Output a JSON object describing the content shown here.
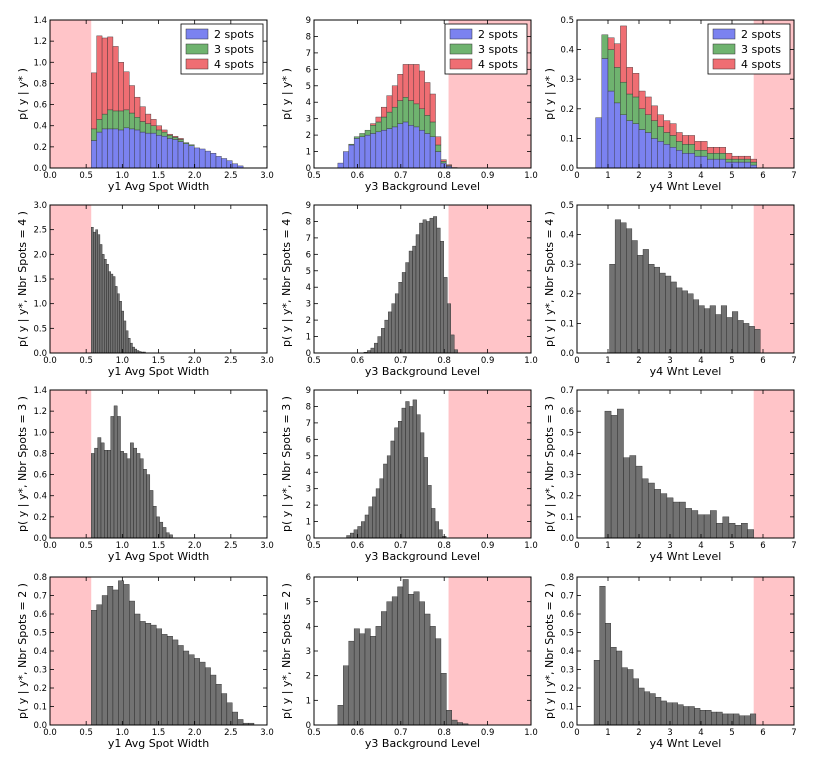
{
  "colors": {
    "two_spots": "#7b82f0",
    "three_spots": "#6fb36f",
    "four_spots": "#ef6e73",
    "gray_bars": "#6a6a6a",
    "excluded_region": "#ffc4c8"
  },
  "chart_data": [
    {
      "id": "r0c0",
      "type": "bar",
      "stacked": true,
      "xlabel": "y1 Avg Spot Width",
      "ylabel": "p( y | y* )",
      "xlim": [
        0,
        3
      ],
      "ylim": [
        0,
        1.4
      ],
      "xticks": [
        "0.0",
        "0.5",
        "1.0",
        "1.5",
        "2.0",
        "2.5",
        "3.0"
      ],
      "yticks": [
        "0.0",
        "0.2",
        "0.4",
        "0.6",
        "0.8",
        "1.0",
        "1.2",
        "1.4"
      ],
      "excluded": [
        [
          0,
          0.57
        ]
      ],
      "legend": {
        "position": "top-right",
        "entries": [
          "2 spots",
          "3 spots",
          "4 spots"
        ]
      },
      "bin_start": 0.57,
      "bin_width": 0.075,
      "series": [
        {
          "name": "2 spots",
          "values": [
            0.26,
            0.34,
            0.37,
            0.37,
            0.37,
            0.36,
            0.38,
            0.37,
            0.36,
            0.34,
            0.33,
            0.33,
            0.31,
            0.3,
            0.28,
            0.27,
            0.25,
            0.23,
            0.21,
            0.19,
            0.18,
            0.16,
            0.14,
            0.11,
            0.09,
            0.07,
            0.04,
            0.02
          ]
        },
        {
          "name": "3 spots",
          "values": [
            0.11,
            0.12,
            0.14,
            0.18,
            0.17,
            0.18,
            0.17,
            0.15,
            0.12,
            0.1,
            0.09,
            0.07,
            0.05,
            0.04,
            0.03,
            0.02,
            0.02,
            0.01,
            0.01,
            0.0,
            0.0,
            0.0,
            0.0,
            0.0,
            0.0,
            0.0,
            0.0,
            0.0
          ]
        },
        {
          "name": "4 spots",
          "values": [
            0.53,
            0.79,
            0.72,
            0.69,
            0.61,
            0.46,
            0.36,
            0.26,
            0.19,
            0.14,
            0.09,
            0.06,
            0.04,
            0.02,
            0.01,
            0.01,
            0.01,
            0.0,
            0.0,
            0.0,
            0.0,
            0.0,
            0.0,
            0.0,
            0.0,
            0.0,
            0.0,
            0.0
          ]
        }
      ]
    },
    {
      "id": "r0c1",
      "type": "bar",
      "stacked": true,
      "xlabel": "y3 Background Level",
      "ylabel": "p( y | y* )",
      "xlim": [
        0.5,
        1.0
      ],
      "ylim": [
        0,
        9
      ],
      "xticks": [
        "0.5",
        "0.6",
        "0.7",
        "0.8",
        "0.9",
        "1.0"
      ],
      "yticks": [
        "0",
        "1",
        "2",
        "3",
        "4",
        "5",
        "6",
        "7",
        "8",
        "9"
      ],
      "excluded": [
        [
          0.81,
          1.0
        ]
      ],
      "legend": {
        "position": "top-right",
        "entries": [
          "2 spots",
          "3 spots",
          "4 spots"
        ]
      },
      "bin_start": 0.555,
      "bin_width": 0.0125,
      "series": [
        {
          "name": "2 spots",
          "values": [
            0.3,
            1.0,
            1.4,
            1.8,
            1.9,
            2.0,
            2.1,
            2.2,
            2.3,
            2.4,
            2.5,
            2.7,
            2.8,
            2.6,
            2.5,
            2.3,
            2.1,
            1.9,
            1.0,
            0.3,
            0.1,
            0.03
          ]
        },
        {
          "name": "3 spots",
          "values": [
            0,
            0,
            0.05,
            0.1,
            0.2,
            0.3,
            0.5,
            0.6,
            0.8,
            1.0,
            1.2,
            1.4,
            1.5,
            1.5,
            1.4,
            1.3,
            1.1,
            0.9,
            0.4,
            0.1,
            0.05,
            0
          ]
        },
        {
          "name": "4 spots",
          "values": [
            0,
            0,
            0,
            0,
            0,
            0,
            0.1,
            0.3,
            0.6,
            1.0,
            1.3,
            1.6,
            2.0,
            2.2,
            2.4,
            2.3,
            2.0,
            1.7,
            0.5,
            0.1,
            0.05,
            0
          ]
        }
      ]
    },
    {
      "id": "r0c2",
      "type": "bar",
      "stacked": true,
      "xlabel": "y4 Wnt Level",
      "ylabel": "p( y | y* )",
      "xlim": [
        0,
        7
      ],
      "ylim": [
        0,
        0.5
      ],
      "xticks": [
        "0",
        "1",
        "2",
        "3",
        "4",
        "5",
        "6",
        "7"
      ],
      "yticks": [
        "0.0",
        "0.1",
        "0.2",
        "0.3",
        "0.4",
        "0.5"
      ],
      "excluded": [
        [
          5.7,
          7
        ]
      ],
      "legend": {
        "position": "top-right",
        "entries": [
          "2 spots",
          "3 spots",
          "4 spots"
        ]
      },
      "bin_start": 0.6,
      "bin_width": 0.2,
      "series": [
        {
          "name": "2 spots",
          "values": [
            0.17,
            0.37,
            0.26,
            0.22,
            0.18,
            0.16,
            0.15,
            0.13,
            0.12,
            0.1,
            0.09,
            0.08,
            0.07,
            0.06,
            0.05,
            0.05,
            0.04,
            0.04,
            0.03,
            0.03,
            0.03,
            0.02,
            0.02,
            0.02,
            0.02,
            0.01
          ]
        },
        {
          "name": "3 spots",
          "values": [
            0.0,
            0.08,
            0.14,
            0.12,
            0.11,
            0.09,
            0.09,
            0.07,
            0.06,
            0.06,
            0.05,
            0.04,
            0.04,
            0.03,
            0.03,
            0.03,
            0.02,
            0.02,
            0.02,
            0.02,
            0.02,
            0.01,
            0.01,
            0.01,
            0.01,
            0.01
          ]
        },
        {
          "name": "4 spots",
          "values": [
            0.0,
            0.0,
            0.04,
            0.08,
            0.19,
            0.09,
            0.08,
            0.06,
            0.06,
            0.05,
            0.04,
            0.04,
            0.04,
            0.03,
            0.03,
            0.03,
            0.03,
            0.03,
            0.02,
            0.02,
            0.02,
            0.02,
            0.01,
            0.01,
            0.01,
            0.01
          ]
        }
      ]
    },
    {
      "id": "r1c0",
      "type": "bar",
      "xlabel": "y1 Avg Spot Width",
      "ylabel": "p( y | y*, Nbr Spots = 4 )",
      "xlim": [
        0,
        3
      ],
      "ylim": [
        0,
        3.0
      ],
      "xticks": [
        "0.0",
        "0.5",
        "1.0",
        "1.5",
        "2.0",
        "2.5",
        "3.0"
      ],
      "yticks": [
        "0.0",
        "0.5",
        "1.0",
        "1.5",
        "2.0",
        "2.5",
        "3.0"
      ],
      "excluded": [
        [
          0,
          0.57
        ]
      ],
      "bin_start": 0.57,
      "bin_width": 0.03,
      "values": [
        2.55,
        2.45,
        2.5,
        2.4,
        2.2,
        2.0,
        1.9,
        1.8,
        1.65,
        1.6,
        1.55,
        1.35,
        1.2,
        1.05,
        0.85,
        0.65,
        0.45,
        0.3,
        0.2,
        0.12,
        0.08,
        0.05,
        0.03,
        0.02,
        0.02
      ]
    },
    {
      "id": "r1c1",
      "type": "bar",
      "xlabel": "y3 Background Level",
      "ylabel": "p( y | y*, Nbr Spots = 4 )",
      "xlim": [
        0.5,
        1.0
      ],
      "ylim": [
        0,
        9
      ],
      "xticks": [
        "0.5",
        "0.6",
        "0.7",
        "0.8",
        "0.9",
        "1.0"
      ],
      "yticks": [
        "0",
        "1",
        "2",
        "3",
        "4",
        "5",
        "6",
        "7",
        "8",
        "9"
      ],
      "excluded": [
        [
          0.81,
          1.0
        ]
      ],
      "bin_start": 0.615,
      "bin_width": 0.008,
      "values": [
        0.05,
        0.15,
        0.3,
        0.6,
        1.0,
        1.5,
        2.0,
        2.5,
        3.0,
        3.6,
        4.3,
        4.9,
        5.5,
        6.2,
        6.5,
        7.2,
        7.9,
        8.1,
        8.0,
        8.2,
        8.3,
        7.6,
        6.8,
        4.6,
        3.0,
        1.1,
        0.2
      ]
    },
    {
      "id": "r1c2",
      "type": "bar",
      "xlabel": "y4 Wnt Level",
      "ylabel": "p( y | y*, Nbr Spots = 4 )",
      "xlim": [
        0,
        7
      ],
      "ylim": [
        0,
        0.5
      ],
      "xticks": [
        "0",
        "1",
        "2",
        "3",
        "4",
        "5",
        "6",
        "7"
      ],
      "yticks": [
        "0.0",
        "0.1",
        "0.2",
        "0.3",
        "0.4",
        "0.5"
      ],
      "excluded": [
        [
          5.7,
          7
        ]
      ],
      "bin_start": 1.05,
      "bin_width": 0.18,
      "values": [
        0.3,
        0.45,
        0.44,
        0.42,
        0.38,
        0.33,
        0.35,
        0.3,
        0.29,
        0.27,
        0.26,
        0.24,
        0.22,
        0.21,
        0.2,
        0.18,
        0.16,
        0.15,
        0.16,
        0.13,
        0.16,
        0.12,
        0.14,
        0.11,
        0.1,
        0.09,
        0.08
      ]
    },
    {
      "id": "r2c0",
      "type": "bar",
      "xlabel": "y1 Avg Spot Width",
      "ylabel": "p( y | y*, Nbr Spots = 3 )",
      "xlim": [
        0,
        3
      ],
      "ylim": [
        0,
        1.4
      ],
      "xticks": [
        "0.0",
        "0.5",
        "1.0",
        "1.5",
        "2.0",
        "2.5",
        "3.0"
      ],
      "yticks": [
        "0.0",
        "0.2",
        "0.4",
        "0.6",
        "0.8",
        "1.0",
        "1.2",
        "1.4"
      ],
      "excluded": [
        [
          0,
          0.57
        ]
      ],
      "bin_start": 0.57,
      "bin_width": 0.045,
      "values": [
        0.8,
        0.85,
        0.95,
        0.9,
        0.83,
        0.83,
        1.15,
        1.25,
        1.15,
        0.82,
        0.8,
        0.75,
        0.9,
        0.85,
        0.8,
        0.75,
        0.65,
        0.6,
        0.45,
        0.3,
        0.2,
        0.15,
        0.1,
        0.05,
        0.03
      ]
    },
    {
      "id": "r2c1",
      "type": "bar",
      "xlabel": "y3 Background Level",
      "ylabel": "p( y | y*, Nbr Spots = 3 )",
      "xlim": [
        0.5,
        1.0
      ],
      "ylim": [
        0,
        9
      ],
      "xticks": [
        "0.5",
        "0.6",
        "0.7",
        "0.8",
        "0.9",
        "1.0"
      ],
      "yticks": [
        "0",
        "1",
        "2",
        "3",
        "4",
        "5",
        "6",
        "7",
        "8",
        "9"
      ],
      "excluded": [
        [
          0.81,
          1.0
        ]
      ],
      "bin_start": 0.575,
      "bin_width": 0.0085,
      "values": [
        0.15,
        0.3,
        0.5,
        0.7,
        1.0,
        1.4,
        1.9,
        2.5,
        3.0,
        3.6,
        4.5,
        5.0,
        5.9,
        6.7,
        7.1,
        7.9,
        8.3,
        8.0,
        8.4,
        7.5,
        6.4,
        4.9,
        3.2,
        1.8,
        1.0,
        0.5,
        0.1
      ]
    },
    {
      "id": "r2c2",
      "type": "bar",
      "xlabel": "y4 Wnt Level",
      "ylabel": "p( y | y*, Nbr Spots = 3 )",
      "xlim": [
        0,
        7
      ],
      "ylim": [
        0,
        0.7
      ],
      "xticks": [
        "0",
        "1",
        "2",
        "3",
        "4",
        "5",
        "6",
        "7"
      ],
      "yticks": [
        "0.0",
        "0.1",
        "0.2",
        "0.3",
        "0.4",
        "0.5",
        "0.6",
        "0.7"
      ],
      "excluded": [
        [
          5.7,
          7
        ]
      ],
      "bin_start": 0.9,
      "bin_width": 0.2,
      "values": [
        0.6,
        0.58,
        0.61,
        0.38,
        0.39,
        0.34,
        0.28,
        0.26,
        0.23,
        0.21,
        0.19,
        0.17,
        0.17,
        0.14,
        0.13,
        0.11,
        0.11,
        0.13,
        0.07,
        0.1,
        0.07,
        0.06,
        0.07,
        0.04
      ]
    },
    {
      "id": "r3c0",
      "type": "bar",
      "xlabel": "y1 Avg Spot Width",
      "ylabel": "p( y | y*, Nbr Spots = 2 )",
      "xlim": [
        0,
        3
      ],
      "ylim": [
        0,
        0.8
      ],
      "xticks": [
        "0.0",
        "0.5",
        "1.0",
        "1.5",
        "2.0",
        "2.5",
        "3.0"
      ],
      "yticks": [
        "0.0",
        "0.1",
        "0.2",
        "0.3",
        "0.4",
        "0.5",
        "0.6",
        "0.7",
        "0.8"
      ],
      "excluded": [
        [
          0,
          0.57
        ]
      ],
      "bin_start": 0.57,
      "bin_width": 0.075,
      "values": [
        0.62,
        0.65,
        0.7,
        0.75,
        0.73,
        0.78,
        0.76,
        0.67,
        0.6,
        0.56,
        0.55,
        0.54,
        0.52,
        0.49,
        0.48,
        0.46,
        0.43,
        0.4,
        0.38,
        0.36,
        0.34,
        0.31,
        0.27,
        0.22,
        0.17,
        0.12,
        0.07,
        0.03,
        0.01,
        0.01
      ]
    },
    {
      "id": "r3c1",
      "type": "bar",
      "xlabel": "y3 Background Level",
      "ylabel": "p( y | y*, Nbr Spots = 2 )",
      "xlim": [
        0.5,
        1.0
      ],
      "ylim": [
        0,
        6
      ],
      "xticks": [
        "0.5",
        "0.6",
        "0.7",
        "0.8",
        "0.9",
        "1.0"
      ],
      "yticks": [
        "0",
        "1",
        "2",
        "3",
        "4",
        "5",
        "6"
      ],
      "excluded": [
        [
          0.81,
          1.0
        ]
      ],
      "bin_start": 0.555,
      "bin_width": 0.0125,
      "values": [
        0.8,
        2.4,
        3.4,
        3.9,
        3.7,
        3.9,
        3.6,
        4.0,
        4.6,
        5.0,
        5.2,
        5.6,
        5.9,
        5.3,
        5.4,
        5.0,
        4.5,
        4.0,
        3.5,
        2.1,
        0.6,
        0.2,
        0.1,
        0.05
      ]
    },
    {
      "id": "r3c2",
      "type": "bar",
      "xlabel": "y4 Wnt Level",
      "ylabel": "p( y | y*, Nbr Spots = 2 )",
      "xlim": [
        0,
        7
      ],
      "ylim": [
        0,
        0.8
      ],
      "xticks": [
        "0",
        "1",
        "2",
        "3",
        "4",
        "5",
        "6",
        "7"
      ],
      "yticks": [
        "0.0",
        "0.1",
        "0.2",
        "0.3",
        "0.4",
        "0.5",
        "0.6",
        "0.7",
        "0.8"
      ],
      "excluded": [
        [
          5.7,
          7
        ]
      ],
      "bin_start": 0.55,
      "bin_width": 0.18,
      "values": [
        0.35,
        0.75,
        0.55,
        0.42,
        0.4,
        0.31,
        0.3,
        0.25,
        0.2,
        0.18,
        0.17,
        0.15,
        0.13,
        0.12,
        0.12,
        0.11,
        0.1,
        0.1,
        0.09,
        0.08,
        0.08,
        0.07,
        0.07,
        0.06,
        0.06,
        0.06,
        0.05,
        0.05,
        0.06
      ]
    }
  ]
}
